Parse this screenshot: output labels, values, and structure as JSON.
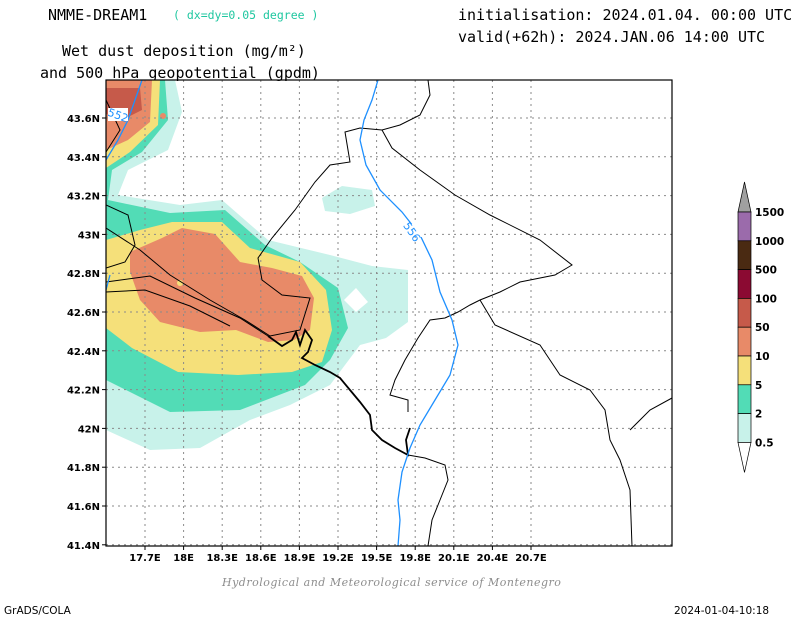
{
  "header": {
    "model_name": "NMME-DREAM1",
    "resolution": "( dx=dy=0.05 degree )",
    "initialisation": "initialisation: 2024.01.04. 00:00 UTC",
    "valid": "valid(+62h): 2024.JAN.06 14:00 UTC",
    "title_line1": "Wet dust deposition (mg/m²)",
    "title_line2": "and 500 hPa geopotential (gpdm)"
  },
  "map": {
    "lon_labels": [
      "17.7E",
      "18E",
      "18.3E",
      "18.6E",
      "18.9E",
      "19.2E",
      "19.5E",
      "19.8E",
      "20.1E",
      "20.4E",
      "20.7E"
    ],
    "lat_labels": [
      "43.6N",
      "43.4N",
      "43.2N",
      "43N",
      "42.8N",
      "42.6N",
      "42.4N",
      "42.2N",
      "42N",
      "41.8N",
      "41.6N",
      "41.4N"
    ],
    "grid": true,
    "contour_labels": [
      "552",
      "556"
    ],
    "contour_color": "#1e90ff"
  },
  "colorbar": {
    "levels": [
      "1500",
      "1000",
      "500",
      "100",
      "50",
      "10",
      "5",
      "2",
      "0.5"
    ],
    "colors": [
      "#a0a0a0",
      "#9b6bab",
      "#4a2a12",
      "#8b0a32",
      "#c65a4a",
      "#e88a68",
      "#f5e07a",
      "#52dcb6",
      "#c8f2ea"
    ]
  },
  "footer": {
    "credit": "Hydrological and Meteorological service of Montenegro",
    "software": "GrADS/COLA",
    "timestamp": "2024-01-04-10:18"
  }
}
